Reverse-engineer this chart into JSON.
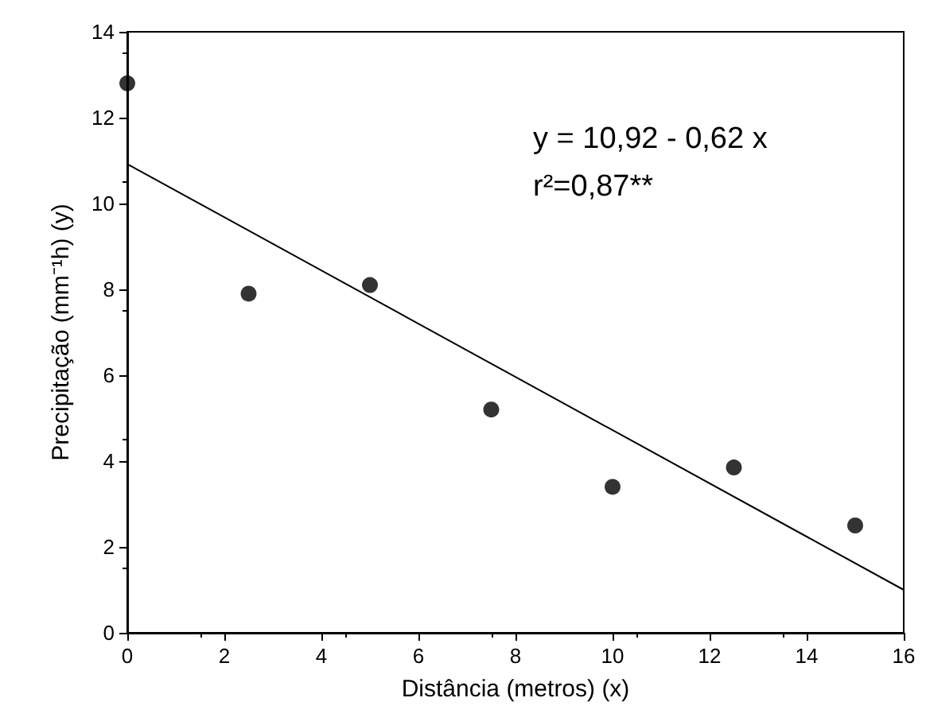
{
  "chart_data": {
    "type": "scatter",
    "xlabel": "Distância (metros) (x)",
    "ylabel": "Precipitação (mm⁻¹h) (y)",
    "annotations": [
      "y = 10,92 - 0,62 x",
      "r²=0,87**"
    ],
    "x": [
      0,
      2.5,
      5,
      7.5,
      10,
      12.5,
      15
    ],
    "series": [
      {
        "color": "#000000",
        "values": [
          12.8,
          7.9,
          8.1,
          5.2,
          3.4,
          3.85,
          2.5
        ]
      },
      {
        "type": "line",
        "color": "#000000",
        "marker": "none",
        "x": [
          0,
          16
        ],
        "values": [
          10.92,
          1.0
        ]
      }
    ],
    "marker": "circle",
    "xlim": [
      0,
      16
    ],
    "xticks": [
      0,
      2,
      4,
      6,
      8,
      10,
      12,
      14,
      16
    ],
    "ylim": [
      0,
      14
    ],
    "yticks": [
      0,
      2,
      4,
      6,
      8,
      10,
      12,
      14
    ],
    "grid": false
  }
}
